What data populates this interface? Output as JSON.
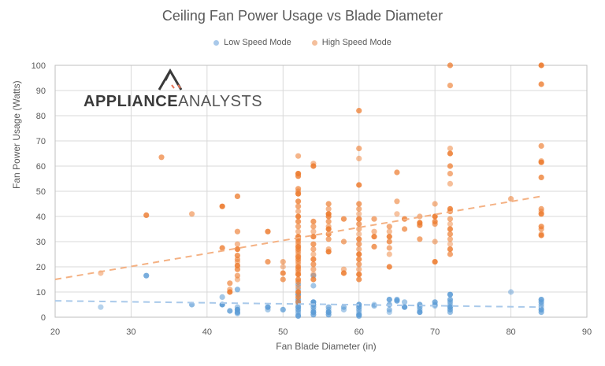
{
  "chart_data": {
    "type": "scatter",
    "title": "Ceiling Fan Power Usage vs Blade Diameter",
    "xlabel": "Fan Blade Diameter (in)",
    "ylabel": "Fan Power Usage (Watts)",
    "xlim": [
      20,
      90
    ],
    "ylim": [
      0,
      100
    ],
    "x_ticks": [
      20,
      30,
      40,
      50,
      60,
      70,
      80,
      90
    ],
    "y_ticks": [
      0,
      10,
      20,
      30,
      40,
      50,
      60,
      70,
      80,
      90,
      100
    ],
    "grid": true,
    "legend_position": "top",
    "watermark": "APPLIANCEANALYSTS",
    "series": [
      {
        "name": "Low Speed Mode",
        "color": "#5B9BD5",
        "points": [
          [
            26,
            4
          ],
          [
            32,
            16.5
          ],
          [
            38,
            5
          ],
          [
            42,
            8
          ],
          [
            42,
            5
          ],
          [
            43,
            2.5
          ],
          [
            44,
            11
          ],
          [
            44,
            4
          ],
          [
            44,
            3
          ],
          [
            44,
            2
          ],
          [
            44,
            1.5
          ],
          [
            48,
            3
          ],
          [
            48,
            4
          ],
          [
            50,
            3
          ],
          [
            52,
            13
          ],
          [
            52,
            11
          ],
          [
            52,
            9
          ],
          [
            52,
            7
          ],
          [
            52,
            6
          ],
          [
            52,
            5
          ],
          [
            52,
            4
          ],
          [
            52,
            3
          ],
          [
            52,
            2
          ],
          [
            52,
            1
          ],
          [
            52,
            0.5
          ],
          [
            54,
            16.5
          ],
          [
            54,
            12.5
          ],
          [
            54,
            6
          ],
          [
            54,
            5
          ],
          [
            54,
            4
          ],
          [
            54,
            3
          ],
          [
            54,
            2
          ],
          [
            54,
            1
          ],
          [
            56,
            4
          ],
          [
            56,
            3
          ],
          [
            56,
            2
          ],
          [
            56,
            1
          ],
          [
            58,
            4
          ],
          [
            58,
            3
          ],
          [
            60,
            5
          ],
          [
            60,
            4
          ],
          [
            60,
            3
          ],
          [
            60,
            2
          ],
          [
            60,
            1
          ],
          [
            60,
            0.5
          ],
          [
            62,
            4.5
          ],
          [
            62,
            5
          ],
          [
            64,
            7
          ],
          [
            64,
            5
          ],
          [
            64,
            3
          ],
          [
            64,
            2
          ],
          [
            65,
            6.5
          ],
          [
            65,
            7
          ],
          [
            66,
            6
          ],
          [
            66,
            4
          ],
          [
            68,
            5
          ],
          [
            68,
            4
          ],
          [
            68,
            3
          ],
          [
            68,
            2
          ],
          [
            70,
            6
          ],
          [
            70,
            5
          ],
          [
            70,
            4.5
          ],
          [
            72,
            9
          ],
          [
            72,
            7
          ],
          [
            72,
            6
          ],
          [
            72,
            5
          ],
          [
            72,
            4
          ],
          [
            72,
            3
          ],
          [
            72,
            2
          ],
          [
            80,
            10
          ],
          [
            84,
            7
          ],
          [
            84,
            6
          ],
          [
            84,
            5
          ],
          [
            84,
            4
          ],
          [
            84,
            3
          ],
          [
            84,
            2
          ]
        ],
        "trendline": {
          "from": [
            20,
            6.5
          ],
          "to": [
            84,
            4
          ]
        }
      },
      {
        "name": "High Speed Mode",
        "color": "#ED7D31",
        "points": [
          [
            26,
            17.5
          ],
          [
            32,
            40.5
          ],
          [
            34,
            63.5
          ],
          [
            38,
            41
          ],
          [
            42,
            44
          ],
          [
            42,
            27.5
          ],
          [
            43,
            13.5
          ],
          [
            43,
            11
          ],
          [
            43,
            10
          ],
          [
            44,
            48
          ],
          [
            44,
            34
          ],
          [
            44,
            29
          ],
          [
            44,
            27
          ],
          [
            44,
            24.5
          ],
          [
            44,
            23
          ],
          [
            44,
            22
          ],
          [
            44,
            20.5
          ],
          [
            44,
            19
          ],
          [
            44,
            16.5
          ],
          [
            44,
            15
          ],
          [
            48,
            34
          ],
          [
            48,
            22
          ],
          [
            50,
            22
          ],
          [
            50,
            20
          ],
          [
            50,
            17.5
          ],
          [
            50,
            15
          ],
          [
            52,
            64
          ],
          [
            52,
            57
          ],
          [
            52,
            56
          ],
          [
            52,
            51
          ],
          [
            52,
            50
          ],
          [
            52,
            49
          ],
          [
            52,
            46
          ],
          [
            52,
            44
          ],
          [
            52,
            42
          ],
          [
            52,
            40
          ],
          [
            52,
            38
          ],
          [
            52,
            36
          ],
          [
            52,
            34
          ],
          [
            52,
            32
          ],
          [
            52,
            31
          ],
          [
            52,
            30
          ],
          [
            52,
            29
          ],
          [
            52,
            28
          ],
          [
            52,
            27
          ],
          [
            52,
            26
          ],
          [
            52,
            25
          ],
          [
            52,
            24
          ],
          [
            52,
            23
          ],
          [
            52,
            22
          ],
          [
            52,
            21
          ],
          [
            52,
            20
          ],
          [
            52,
            19
          ],
          [
            52,
            18
          ],
          [
            52,
            17
          ],
          [
            52,
            15
          ],
          [
            52,
            14
          ],
          [
            52,
            12
          ],
          [
            52,
            10
          ],
          [
            52,
            8
          ],
          [
            52,
            6
          ],
          [
            54,
            61
          ],
          [
            54,
            60
          ],
          [
            54,
            38
          ],
          [
            54,
            36
          ],
          [
            54,
            34
          ],
          [
            54,
            32
          ],
          [
            54,
            29
          ],
          [
            54,
            27
          ],
          [
            54,
            25
          ],
          [
            54,
            23
          ],
          [
            54,
            21
          ],
          [
            54,
            19
          ],
          [
            54,
            17
          ],
          [
            54,
            15
          ],
          [
            56,
            45
          ],
          [
            56,
            43
          ],
          [
            56,
            41
          ],
          [
            56,
            40
          ],
          [
            56,
            38
          ],
          [
            56,
            36
          ],
          [
            56,
            35
          ],
          [
            56,
            33
          ],
          [
            56,
            31
          ],
          [
            56,
            27
          ],
          [
            56,
            26
          ],
          [
            58,
            39
          ],
          [
            58,
            30
          ],
          [
            58,
            19
          ],
          [
            58,
            17.5
          ],
          [
            60,
            82
          ],
          [
            60,
            67
          ],
          [
            60,
            63
          ],
          [
            60,
            52.5
          ],
          [
            60,
            45
          ],
          [
            60,
            43
          ],
          [
            60,
            41
          ],
          [
            60,
            39
          ],
          [
            60,
            37
          ],
          [
            60,
            35
          ],
          [
            60,
            33
          ],
          [
            60,
            31
          ],
          [
            60,
            29
          ],
          [
            60,
            27
          ],
          [
            60,
            25
          ],
          [
            60,
            23
          ],
          [
            60,
            21
          ],
          [
            60,
            19
          ],
          [
            60,
            17
          ],
          [
            60,
            15
          ],
          [
            62,
            39
          ],
          [
            62,
            34
          ],
          [
            62,
            32
          ],
          [
            62,
            28
          ],
          [
            64,
            36
          ],
          [
            64,
            34
          ],
          [
            64,
            32
          ],
          [
            64,
            30
          ],
          [
            64,
            27.5
          ],
          [
            64,
            25
          ],
          [
            64,
            20
          ],
          [
            65,
            57.5
          ],
          [
            65,
            46
          ],
          [
            65,
            41
          ],
          [
            66,
            39
          ],
          [
            66,
            35
          ],
          [
            68,
            40
          ],
          [
            68,
            37.5
          ],
          [
            68,
            36.5
          ],
          [
            68,
            31
          ],
          [
            70,
            45
          ],
          [
            70,
            40
          ],
          [
            70,
            38
          ],
          [
            70,
            37
          ],
          [
            70,
            30
          ],
          [
            70,
            22
          ],
          [
            72,
            100
          ],
          [
            72,
            92
          ],
          [
            72,
            67
          ],
          [
            72,
            65
          ],
          [
            72,
            60
          ],
          [
            72,
            57
          ],
          [
            72,
            53
          ],
          [
            72,
            43
          ],
          [
            72,
            42
          ],
          [
            72,
            39
          ],
          [
            72,
            37
          ],
          [
            72,
            35
          ],
          [
            72,
            33
          ],
          [
            72,
            31
          ],
          [
            72,
            29
          ],
          [
            72,
            27
          ],
          [
            72,
            25
          ],
          [
            80,
            47
          ],
          [
            84,
            100
          ],
          [
            84,
            92.5
          ],
          [
            84,
            68
          ],
          [
            84,
            62
          ],
          [
            84,
            61.5
          ],
          [
            84,
            55.5
          ],
          [
            84,
            43
          ],
          [
            84,
            42
          ],
          [
            84,
            41
          ],
          [
            84,
            36
          ],
          [
            84,
            35
          ],
          [
            84,
            33
          ],
          [
            84,
            32.5
          ]
        ],
        "trendline": {
          "from": [
            20,
            15
          ],
          "to": [
            84,
            48
          ]
        }
      }
    ]
  },
  "legend": {
    "low": "Low Speed Mode",
    "high": "High Speed Mode"
  },
  "logo": {
    "bold": "APPLIANCE",
    "light": "ANALYSTS"
  }
}
